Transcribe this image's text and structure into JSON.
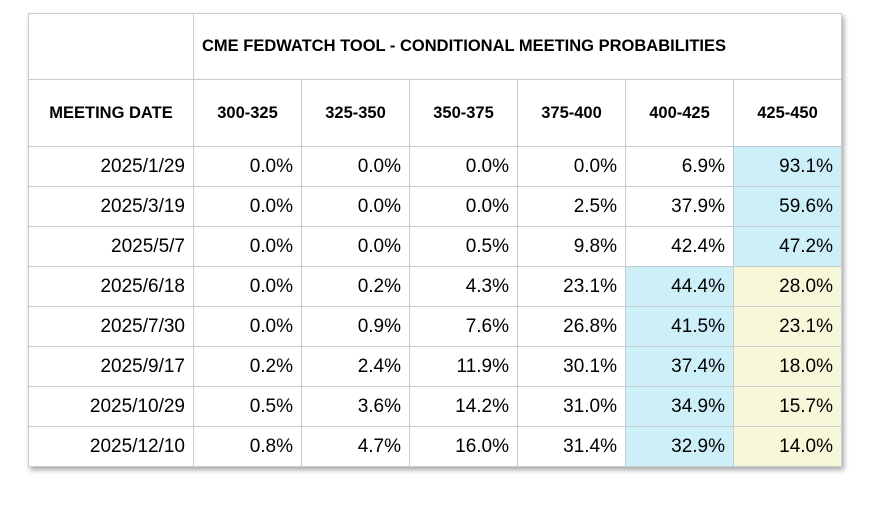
{
  "table": {
    "title": "CME FEDWATCH TOOL - CONDITIONAL MEETING PROBABILITIES",
    "columns": [
      "MEETING DATE",
      "300-325",
      "325-350",
      "350-375",
      "375-400",
      "400-425",
      "425-450"
    ],
    "rows": [
      [
        "2025/1/29",
        "0.0%",
        "0.0%",
        "0.0%",
        "0.0%",
        "6.9%",
        "93.1%"
      ],
      [
        "2025/3/19",
        "0.0%",
        "0.0%",
        "0.0%",
        "2.5%",
        "37.9%",
        "59.6%"
      ],
      [
        "2025/5/7",
        "0.0%",
        "0.0%",
        "0.5%",
        "9.8%",
        "42.4%",
        "47.2%"
      ],
      [
        "2025/6/18",
        "0.0%",
        "0.2%",
        "4.3%",
        "23.1%",
        "44.4%",
        "28.0%"
      ],
      [
        "2025/7/30",
        "0.0%",
        "0.9%",
        "7.6%",
        "26.8%",
        "41.5%",
        "23.1%"
      ],
      [
        "2025/9/17",
        "0.2%",
        "2.4%",
        "11.9%",
        "30.1%",
        "37.4%",
        "18.0%"
      ],
      [
        "2025/10/29",
        "0.5%",
        "3.6%",
        "14.2%",
        "31.0%",
        "34.9%",
        "15.7%"
      ],
      [
        "2025/12/10",
        "0.8%",
        "4.7%",
        "16.0%",
        "31.4%",
        "32.9%",
        "14.0%"
      ]
    ]
  }
}
